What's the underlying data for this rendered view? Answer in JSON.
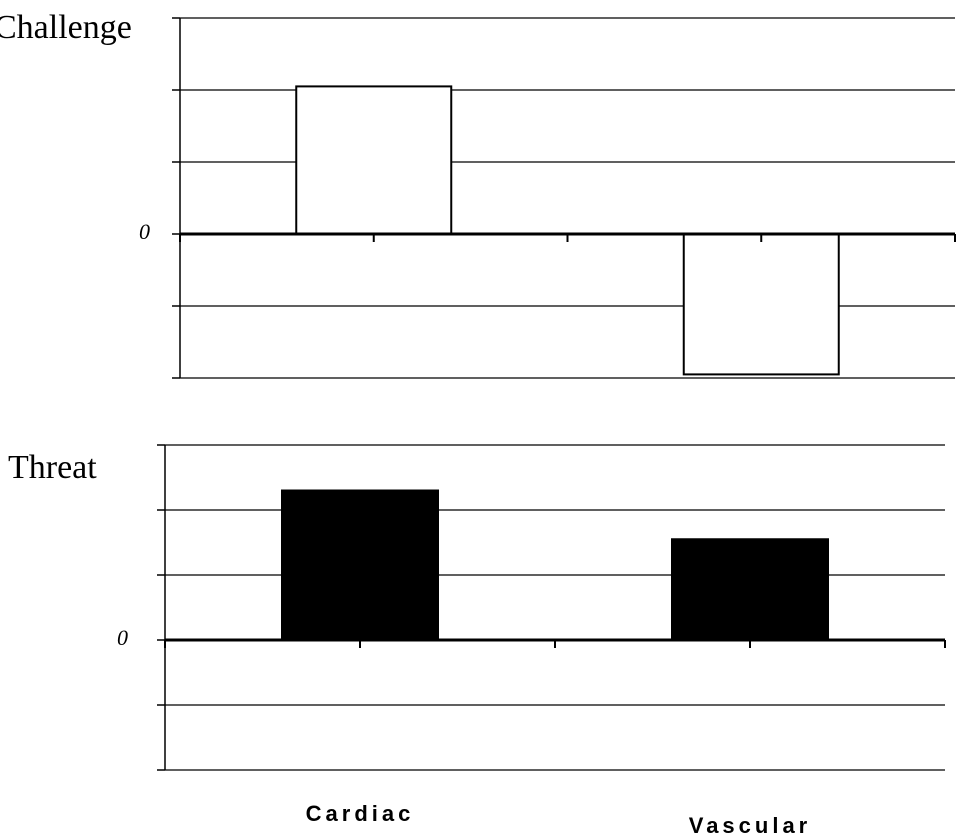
{
  "chart_data": [
    {
      "type": "bar",
      "title": "Challenge",
      "values": [
        2.05,
        -1.95
      ],
      "fill": "#ffffff",
      "stroke": "#000000",
      "ylim": [
        -2,
        3
      ],
      "yticks": [
        0
      ],
      "grid_lines": [
        -2,
        -1,
        0,
        1,
        2,
        3
      ]
    },
    {
      "type": "bar",
      "title": "Threat",
      "categories": [
        "Cardiac",
        "Vascular"
      ],
      "values": [
        2.3,
        1.55
      ],
      "fill": "#000000",
      "stroke": "#000000",
      "ylim": [
        -2,
        3
      ],
      "yticks": [
        0
      ],
      "grid_lines": [
        -2,
        -1,
        0,
        1,
        2,
        3
      ]
    }
  ]
}
